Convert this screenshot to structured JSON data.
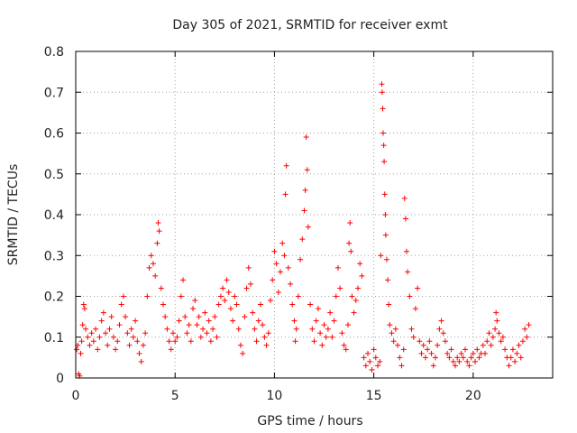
{
  "colors": {
    "series": "#ff0000",
    "axis": "#000000",
    "grid": "#a0a0a0"
  },
  "chart_data": {
    "type": "scatter",
    "title": "Day 305 of 2021, SRMTID for receiver exmt",
    "xlabel": "GPS time / hours",
    "ylabel": "SRMTID / TECUs",
    "xlim": [
      0,
      24
    ],
    "ylim": [
      0,
      0.8
    ],
    "xticks": [
      0,
      5,
      10,
      15,
      20
    ],
    "yticks": [
      0,
      0.1,
      0.2,
      0.3,
      0.4,
      0.5,
      0.6,
      0.7,
      0.8
    ],
    "xtick_labels": [
      "0",
      "5",
      "10",
      "15",
      "20"
    ],
    "ytick_labels": [
      "0",
      "0.1",
      "0.2",
      "0.3",
      "0.4",
      "0.5",
      "0.6",
      "0.7",
      "0.8"
    ],
    "grid": true,
    "marker": "+",
    "series": [
      {
        "name": "SRMTID",
        "points": [
          [
            0.05,
            0.07
          ],
          [
            0.1,
            0.08
          ],
          [
            0.15,
            0.01
          ],
          [
            0.2,
            0.005
          ],
          [
            0.25,
            0.06
          ],
          [
            0.3,
            0.09
          ],
          [
            0.35,
            0.13
          ],
          [
            0.4,
            0.18
          ],
          [
            0.45,
            0.17
          ],
          [
            0.5,
            0.12
          ],
          [
            0.6,
            0.1
          ],
          [
            0.7,
            0.08
          ],
          [
            0.8,
            0.11
          ],
          [
            0.9,
            0.09
          ],
          [
            1.0,
            0.12
          ],
          [
            1.1,
            0.07
          ],
          [
            1.2,
            0.1
          ],
          [
            1.3,
            0.14
          ],
          [
            1.4,
            0.16
          ],
          [
            1.5,
            0.11
          ],
          [
            1.6,
            0.08
          ],
          [
            1.7,
            0.12
          ],
          [
            1.8,
            0.15
          ],
          [
            1.9,
            0.1
          ],
          [
            2.0,
            0.07
          ],
          [
            2.1,
            0.09
          ],
          [
            2.2,
            0.13
          ],
          [
            2.3,
            0.18
          ],
          [
            2.4,
            0.2
          ],
          [
            2.5,
            0.15
          ],
          [
            2.6,
            0.11
          ],
          [
            2.7,
            0.08
          ],
          [
            2.8,
            0.12
          ],
          [
            2.9,
            0.1
          ],
          [
            3.0,
            0.14
          ],
          [
            3.1,
            0.09
          ],
          [
            3.2,
            0.06
          ],
          [
            3.3,
            0.04
          ],
          [
            3.4,
            0.08
          ],
          [
            3.5,
            0.11
          ],
          [
            3.6,
            0.2
          ],
          [
            3.7,
            0.27
          ],
          [
            3.8,
            0.3
          ],
          [
            3.9,
            0.28
          ],
          [
            4.0,
            0.25
          ],
          [
            4.1,
            0.33
          ],
          [
            4.15,
            0.38
          ],
          [
            4.2,
            0.36
          ],
          [
            4.3,
            0.22
          ],
          [
            4.4,
            0.18
          ],
          [
            4.5,
            0.15
          ],
          [
            4.6,
            0.12
          ],
          [
            4.7,
            0.09
          ],
          [
            4.8,
            0.07
          ],
          [
            4.9,
            0.11
          ],
          [
            5.0,
            0.09
          ],
          [
            5.1,
            0.1
          ],
          [
            5.2,
            0.14
          ],
          [
            5.3,
            0.2
          ],
          [
            5.4,
            0.24
          ],
          [
            5.5,
            0.15
          ],
          [
            5.6,
            0.11
          ],
          [
            5.7,
            0.13
          ],
          [
            5.8,
            0.09
          ],
          [
            5.9,
            0.17
          ],
          [
            6.0,
            0.19
          ],
          [
            6.1,
            0.13
          ],
          [
            6.2,
            0.15
          ],
          [
            6.3,
            0.1
          ],
          [
            6.4,
            0.12
          ],
          [
            6.5,
            0.16
          ],
          [
            6.6,
            0.11
          ],
          [
            6.7,
            0.14
          ],
          [
            6.8,
            0.09
          ],
          [
            6.9,
            0.12
          ],
          [
            7.0,
            0.15
          ],
          [
            7.1,
            0.1
          ],
          [
            7.2,
            0.18
          ],
          [
            7.3,
            0.2
          ],
          [
            7.4,
            0.22
          ],
          [
            7.5,
            0.19
          ],
          [
            7.6,
            0.24
          ],
          [
            7.7,
            0.21
          ],
          [
            7.8,
            0.17
          ],
          [
            7.9,
            0.14
          ],
          [
            8.0,
            0.2
          ],
          [
            8.1,
            0.18
          ],
          [
            8.2,
            0.12
          ],
          [
            8.3,
            0.08
          ],
          [
            8.4,
            0.06
          ],
          [
            8.5,
            0.15
          ],
          [
            8.6,
            0.22
          ],
          [
            8.7,
            0.27
          ],
          [
            8.8,
            0.23
          ],
          [
            8.9,
            0.16
          ],
          [
            9.0,
            0.12
          ],
          [
            9.1,
            0.09
          ],
          [
            9.2,
            0.14
          ],
          [
            9.3,
            0.18
          ],
          [
            9.4,
            0.13
          ],
          [
            9.5,
            0.1
          ],
          [
            9.6,
            0.08
          ],
          [
            9.7,
            0.11
          ],
          [
            9.8,
            0.19
          ],
          [
            9.9,
            0.24
          ],
          [
            10.0,
            0.31
          ],
          [
            10.1,
            0.28
          ],
          [
            10.2,
            0.21
          ],
          [
            10.3,
            0.26
          ],
          [
            10.4,
            0.33
          ],
          [
            10.5,
            0.3
          ],
          [
            10.55,
            0.45
          ],
          [
            10.6,
            0.52
          ],
          [
            10.7,
            0.27
          ],
          [
            10.8,
            0.23
          ],
          [
            10.9,
            0.18
          ],
          [
            11.0,
            0.14
          ],
          [
            11.05,
            0.09
          ],
          [
            11.1,
            0.12
          ],
          [
            11.2,
            0.2
          ],
          [
            11.3,
            0.29
          ],
          [
            11.4,
            0.34
          ],
          [
            11.5,
            0.41
          ],
          [
            11.55,
            0.46
          ],
          [
            11.6,
            0.59
          ],
          [
            11.65,
            0.51
          ],
          [
            11.7,
            0.37
          ],
          [
            11.8,
            0.18
          ],
          [
            11.9,
            0.12
          ],
          [
            12.0,
            0.09
          ],
          [
            12.1,
            0.14
          ],
          [
            12.2,
            0.17
          ],
          [
            12.3,
            0.11
          ],
          [
            12.4,
            0.08
          ],
          [
            12.5,
            0.13
          ],
          [
            12.6,
            0.1
          ],
          [
            12.7,
            0.12
          ],
          [
            12.8,
            0.16
          ],
          [
            12.9,
            0.1
          ],
          [
            13.0,
            0.14
          ],
          [
            13.1,
            0.2
          ],
          [
            13.2,
            0.27
          ],
          [
            13.3,
            0.22
          ],
          [
            13.4,
            0.11
          ],
          [
            13.5,
            0.08
          ],
          [
            13.6,
            0.07
          ],
          [
            13.7,
            0.13
          ],
          [
            13.75,
            0.33
          ],
          [
            13.8,
            0.38
          ],
          [
            13.85,
            0.31
          ],
          [
            13.9,
            0.2
          ],
          [
            14.0,
            0.16
          ],
          [
            14.1,
            0.19
          ],
          [
            14.2,
            0.22
          ],
          [
            14.3,
            0.28
          ],
          [
            14.4,
            0.25
          ],
          [
            14.5,
            0.05
          ],
          [
            14.6,
            0.03
          ],
          [
            14.7,
            0.06
          ],
          [
            14.8,
            0.04
          ],
          [
            14.9,
            0.02
          ],
          [
            15.0,
            0.07
          ],
          [
            15.1,
            0.05
          ],
          [
            15.2,
            0.03
          ],
          [
            15.3,
            0.04
          ],
          [
            15.35,
            0.3
          ],
          [
            15.4,
            0.72
          ],
          [
            15.42,
            0.7
          ],
          [
            15.45,
            0.66
          ],
          [
            15.47,
            0.6
          ],
          [
            15.5,
            0.57
          ],
          [
            15.52,
            0.53
          ],
          [
            15.55,
            0.45
          ],
          [
            15.58,
            0.4
          ],
          [
            15.6,
            0.35
          ],
          [
            15.65,
            0.29
          ],
          [
            15.7,
            0.24
          ],
          [
            15.75,
            0.18
          ],
          [
            15.8,
            0.13
          ],
          [
            15.9,
            0.11
          ],
          [
            16.0,
            0.09
          ],
          [
            16.1,
            0.12
          ],
          [
            16.2,
            0.08
          ],
          [
            16.3,
            0.05
          ],
          [
            16.4,
            0.03
          ],
          [
            16.5,
            0.07
          ],
          [
            16.55,
            0.44
          ],
          [
            16.6,
            0.39
          ],
          [
            16.65,
            0.31
          ],
          [
            16.7,
            0.26
          ],
          [
            16.8,
            0.2
          ],
          [
            16.9,
            0.12
          ],
          [
            17.0,
            0.1
          ],
          [
            17.1,
            0.17
          ],
          [
            17.2,
            0.22
          ],
          [
            17.3,
            0.09
          ],
          [
            17.4,
            0.06
          ],
          [
            17.5,
            0.08
          ],
          [
            17.6,
            0.05
          ],
          [
            17.7,
            0.07
          ],
          [
            17.8,
            0.09
          ],
          [
            17.9,
            0.06
          ],
          [
            18.0,
            0.03
          ],
          [
            18.1,
            0.05
          ],
          [
            18.2,
            0.08
          ],
          [
            18.3,
            0.12
          ],
          [
            18.4,
            0.14
          ],
          [
            18.5,
            0.11
          ],
          [
            18.6,
            0.09
          ],
          [
            18.7,
            0.06
          ],
          [
            18.8,
            0.05
          ],
          [
            18.9,
            0.07
          ],
          [
            19.0,
            0.04
          ],
          [
            19.1,
            0.03
          ],
          [
            19.2,
            0.05
          ],
          [
            19.3,
            0.04
          ],
          [
            19.4,
            0.06
          ],
          [
            19.5,
            0.05
          ],
          [
            19.6,
            0.07
          ],
          [
            19.7,
            0.04
          ],
          [
            19.8,
            0.03
          ],
          [
            19.9,
            0.05
          ],
          [
            20.0,
            0.06
          ],
          [
            20.1,
            0.04
          ],
          [
            20.2,
            0.07
          ],
          [
            20.3,
            0.05
          ],
          [
            20.4,
            0.06
          ],
          [
            20.5,
            0.08
          ],
          [
            20.6,
            0.06
          ],
          [
            20.7,
            0.09
          ],
          [
            20.8,
            0.11
          ],
          [
            20.9,
            0.08
          ],
          [
            21.0,
            0.1
          ],
          [
            21.1,
            0.12
          ],
          [
            21.15,
            0.16
          ],
          [
            21.2,
            0.14
          ],
          [
            21.3,
            0.11
          ],
          [
            21.4,
            0.09
          ],
          [
            21.5,
            0.1
          ],
          [
            21.6,
            0.07
          ],
          [
            21.7,
            0.05
          ],
          [
            21.8,
            0.03
          ],
          [
            21.9,
            0.05
          ],
          [
            22.0,
            0.07
          ],
          [
            22.1,
            0.04
          ],
          [
            22.2,
            0.06
          ],
          [
            22.3,
            0.08
          ],
          [
            22.4,
            0.05
          ],
          [
            22.5,
            0.09
          ],
          [
            22.6,
            0.12
          ],
          [
            22.7,
            0.1
          ],
          [
            22.8,
            0.13
          ]
        ]
      }
    ]
  }
}
